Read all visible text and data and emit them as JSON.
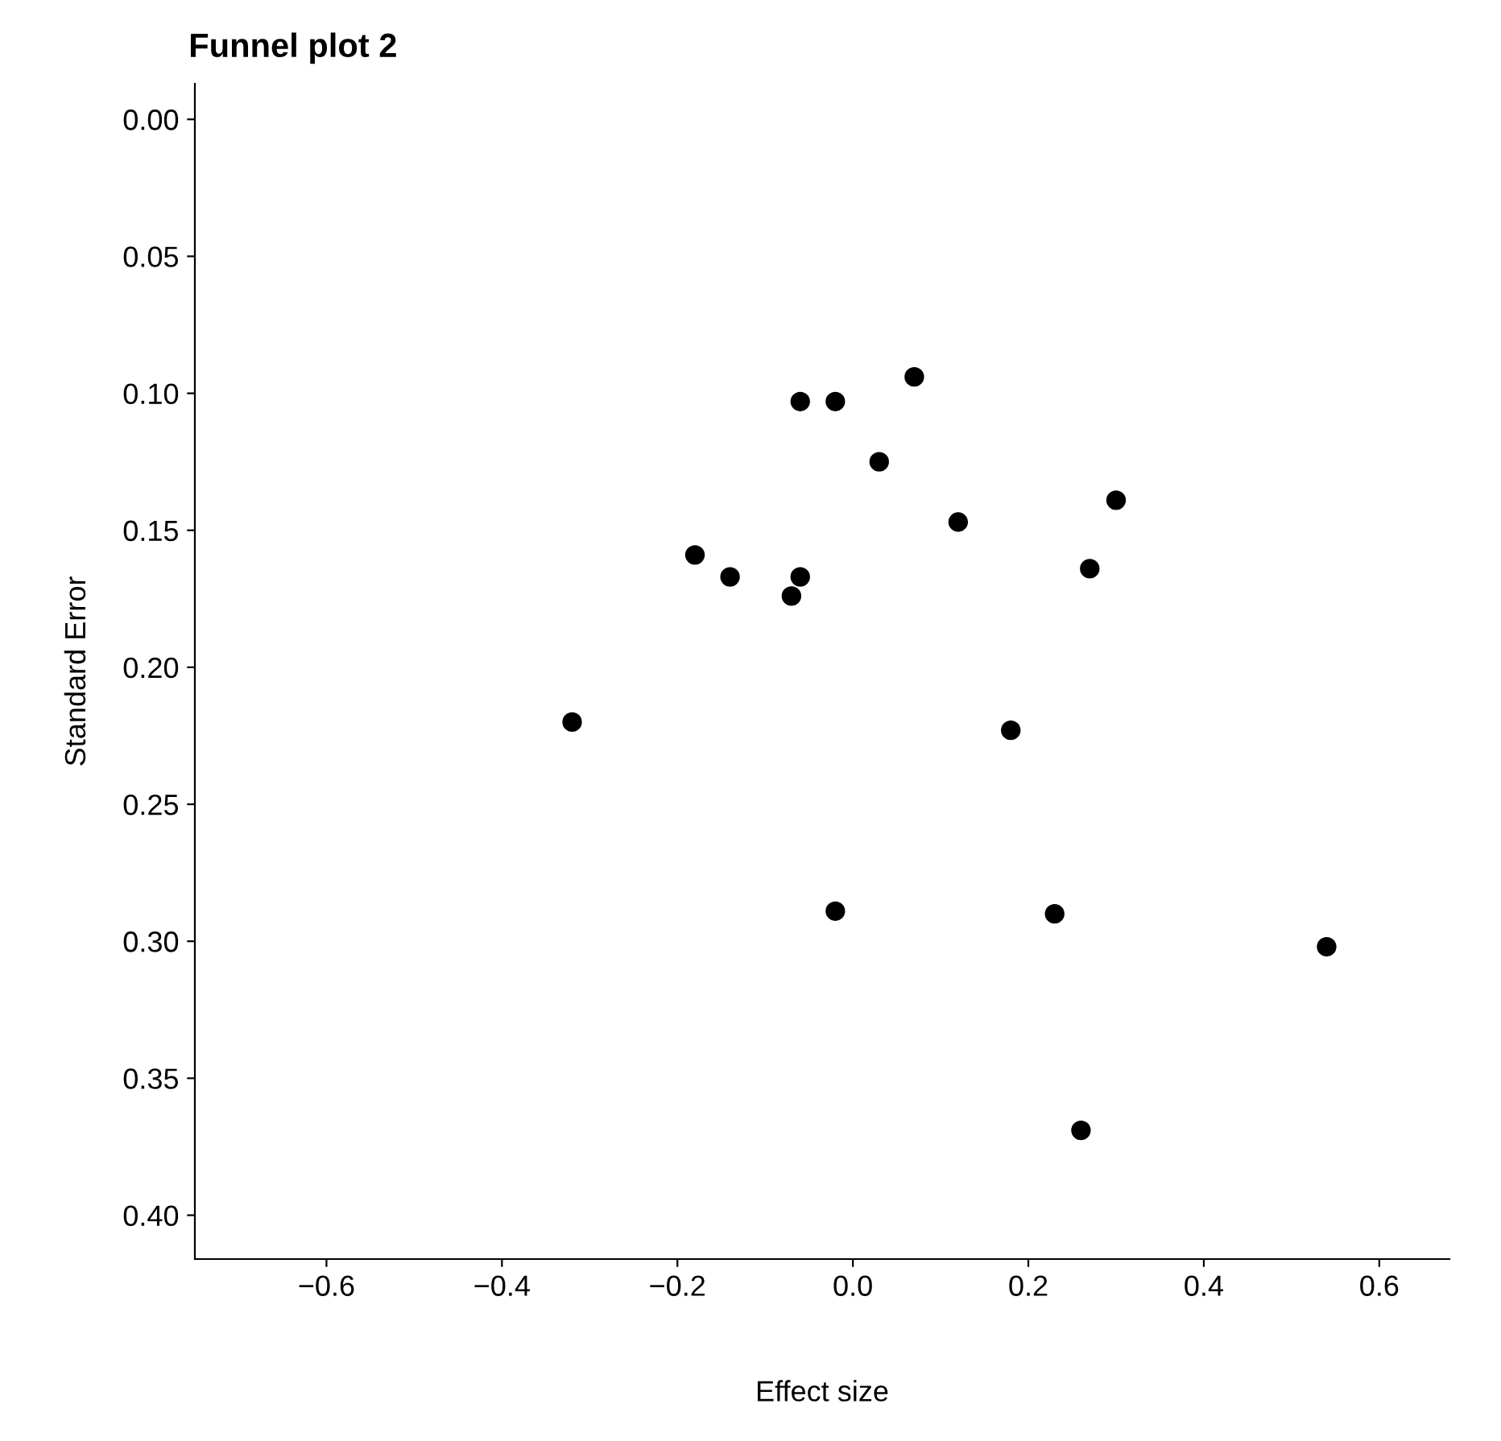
{
  "chart_data": {
    "type": "scatter",
    "title": "Funnel plot 2",
    "xlabel": "Effect size",
    "ylabel": "Standard Error",
    "x": [
      0.07,
      -0.06,
      -0.02,
      0.03,
      0.3,
      0.12,
      -0.18,
      -0.14,
      -0.06,
      0.27,
      -0.07,
      -0.32,
      0.18,
      -0.02,
      0.23,
      0.54,
      0.26
    ],
    "series": [
      {
        "color": "#000000",
        "values": [
          0.094,
          0.103,
          0.103,
          0.125,
          0.139,
          0.147,
          0.159,
          0.167,
          0.167,
          0.164,
          0.174,
          0.22,
          0.223,
          0.289,
          0.29,
          0.302,
          0.369
        ]
      }
    ],
    "xlim": [
      -0.75,
      0.68
    ],
    "ylim": [
      0.416,
      -0.013
    ],
    "xticks": [
      {
        "value": -0.6,
        "label": "−0.6"
      },
      {
        "value": -0.4,
        "label": "−0.4"
      },
      {
        "value": -0.2,
        "label": "−0.2"
      },
      {
        "value": 0.0,
        "label": "0.0"
      },
      {
        "value": 0.2,
        "label": "0.2"
      },
      {
        "value": 0.4,
        "label": "0.4"
      },
      {
        "value": 0.6,
        "label": "0.6"
      }
    ],
    "yticks": [
      {
        "value": 0.0,
        "label": "0.00"
      },
      {
        "value": 0.05,
        "label": "0.05"
      },
      {
        "value": 0.1,
        "label": "0.10"
      },
      {
        "value": 0.15,
        "label": "0.15"
      },
      {
        "value": 0.2,
        "label": "0.20"
      },
      {
        "value": 0.25,
        "label": "0.25"
      },
      {
        "value": 0.3,
        "label": "0.30"
      },
      {
        "value": 0.35,
        "label": "0.35"
      },
      {
        "value": 0.4,
        "label": "0.40"
      }
    ],
    "marker": "circle",
    "grid": false,
    "legend": false
  }
}
